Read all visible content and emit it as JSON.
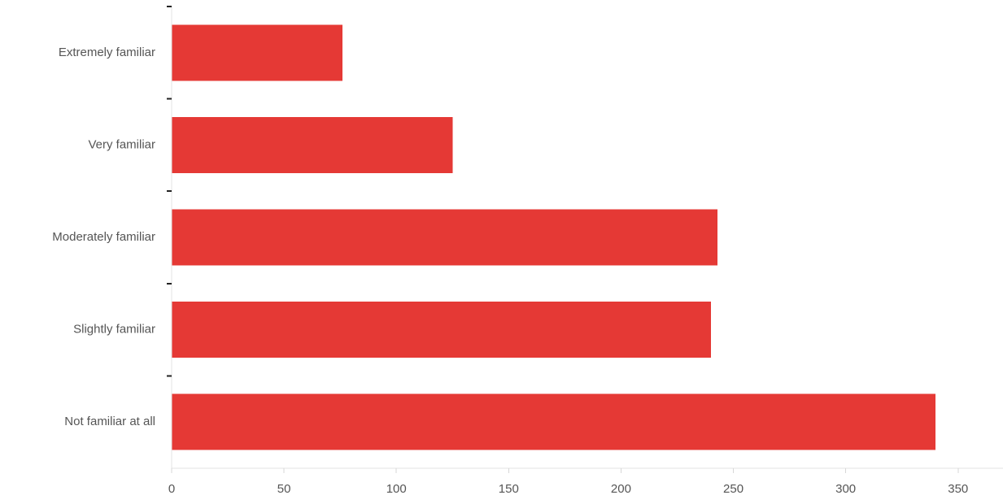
{
  "chart_data": {
    "type": "bar",
    "orientation": "horizontal",
    "categories": [
      "Extremely familiar",
      "Very familiar",
      "Moderately familiar",
      "Slightly familiar",
      "Not familiar at all"
    ],
    "values": [
      76,
      125,
      243,
      240,
      340
    ],
    "xlim": [
      0,
      370
    ],
    "xticks": [
      0,
      50,
      100,
      150,
      200,
      250,
      300,
      350
    ],
    "grid": false,
    "colors": {
      "bar": "#e53935",
      "label_text": "#555555",
      "y_ticks": "#222222",
      "axis": "#e3e3e3"
    }
  }
}
